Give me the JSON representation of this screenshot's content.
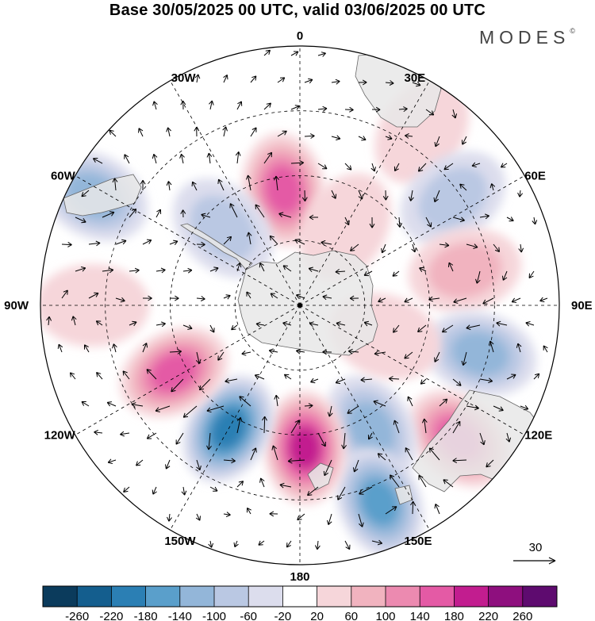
{
  "title": "Base 30/05/2025 00 UTC, valid 03/06/2025 00 UTC",
  "brand": {
    "text": "MODES",
    "mark": "©"
  },
  "longitude_labels": [
    {
      "text": "0",
      "lon": 0
    },
    {
      "text": "30E",
      "lon": 30
    },
    {
      "text": "60E",
      "lon": 60
    },
    {
      "text": "90E",
      "lon": 90
    },
    {
      "text": "120E",
      "lon": 120
    },
    {
      "text": "150E",
      "lon": 150
    },
    {
      "text": "180",
      "lon": 180
    },
    {
      "text": "150W",
      "lon": -150
    },
    {
      "text": "120W",
      "lon": -120
    },
    {
      "text": "90W",
      "lon": -90
    },
    {
      "text": "60W",
      "lon": -60
    },
    {
      "text": "30W",
      "lon": -30
    }
  ],
  "vector_key": {
    "value": "30"
  },
  "colorbar": {
    "ticks": [
      "-260",
      "-220",
      "-180",
      "-140",
      "-100",
      "-60",
      "-20",
      "20",
      "60",
      "100",
      "140",
      "180",
      "220",
      "260"
    ],
    "colors": [
      "#0b3b5c",
      "#145e8e",
      "#2b7fb4",
      "#5a9fcb",
      "#93b6d9",
      "#bac8e3",
      "#dcdded",
      "#ffffff",
      "#f6d6da",
      "#f1b3bf",
      "#ec8ab0",
      "#e45aa5",
      "#c21d8f",
      "#8e0f7e",
      "#5e0b6f"
    ]
  },
  "map": {
    "projection": "south polar stereographic",
    "parallels_dashed": true,
    "meridians_dashed": true,
    "anomalies": [
      {
        "lon": -8,
        "colat": 0.45,
        "value": 160
      },
      {
        "lon": 35,
        "colat": 0.82,
        "value": 60
      },
      {
        "lon": 55,
        "colat": 0.72,
        "value": -100
      },
      {
        "lon": -45,
        "colat": 0.42,
        "value": -90
      },
      {
        "lon": -62,
        "colat": 0.9,
        "value": -120
      },
      {
        "lon": 78,
        "colat": 0.65,
        "value": 110
      },
      {
        "lon": 105,
        "colat": 0.72,
        "value": -140
      },
      {
        "lon": 130,
        "colat": 0.8,
        "value": 170
      },
      {
        "lon": 150,
        "colat": 0.55,
        "value": -130
      },
      {
        "lon": 158,
        "colat": 0.82,
        "value": -170
      },
      {
        "lon": 178,
        "colat": 0.55,
        "value": 210
      },
      {
        "lon": -150,
        "colat": 0.55,
        "value": -230
      },
      {
        "lon": -118,
        "colat": 0.55,
        "value": 170
      },
      {
        "lon": -90,
        "colat": 0.8,
        "value": 60
      },
      {
        "lon": 30,
        "colat": 0.35,
        "value": 60
      },
      {
        "lon": 110,
        "colat": 0.35,
        "value": 40
      }
    ]
  }
}
